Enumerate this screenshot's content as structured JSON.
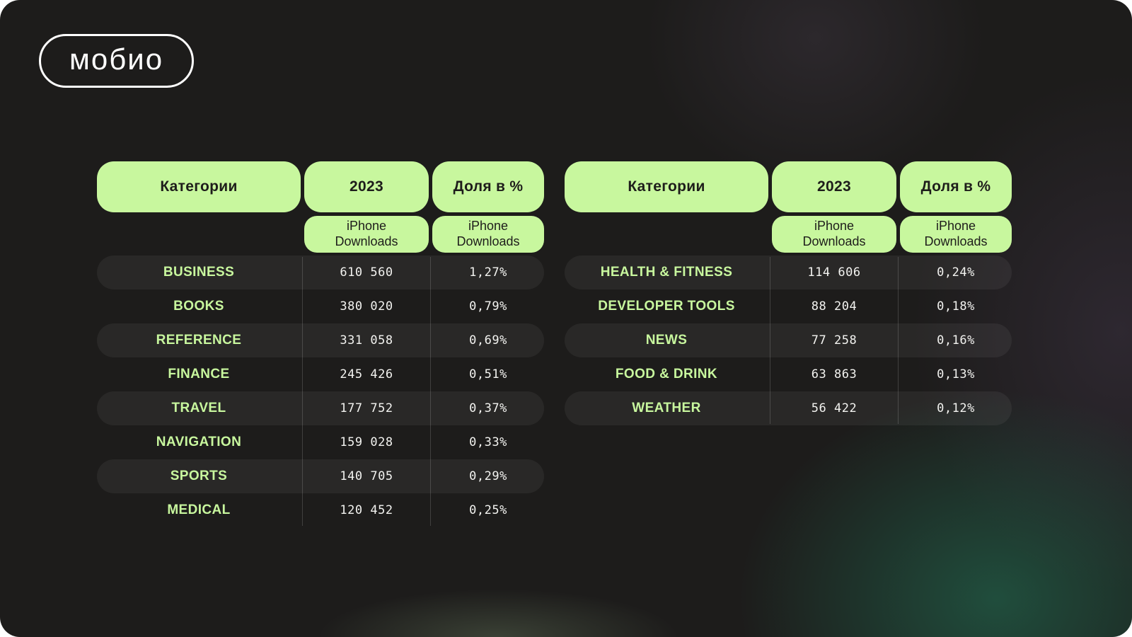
{
  "logo": {
    "text": "мобио"
  },
  "colors": {
    "accent": "#c8f79e",
    "background": "#1d1c1b",
    "row_highlight": "rgba(255,255,255,0.055)"
  },
  "tables": [
    {
      "headers": {
        "category": "Категории",
        "year": "2023",
        "share": "Доля в %"
      },
      "subheaders": {
        "downloads": "iPhone Downloads",
        "share": "iPhone Downloads"
      },
      "rows": [
        {
          "category": "BUSINESS",
          "downloads": "610 560",
          "share": "1,27%"
        },
        {
          "category": "BOOKS",
          "downloads": "380 020",
          "share": "0,79%"
        },
        {
          "category": "REFERENCE",
          "downloads": "331 058",
          "share": "0,69%"
        },
        {
          "category": "FINANCE",
          "downloads": "245 426",
          "share": "0,51%"
        },
        {
          "category": "TRAVEL",
          "downloads": "177 752",
          "share": "0,37%"
        },
        {
          "category": "NAVIGATION",
          "downloads": "159 028",
          "share": "0,33%"
        },
        {
          "category": "SPORTS",
          "downloads": "140 705",
          "share": "0,29%"
        },
        {
          "category": "MEDICAL",
          "downloads": "120 452",
          "share": "0,25%"
        }
      ]
    },
    {
      "headers": {
        "category": "Категории",
        "year": "2023",
        "share": "Доля в %"
      },
      "subheaders": {
        "downloads": "iPhone Downloads",
        "share": "iPhone Downloads"
      },
      "rows": [
        {
          "category": "HEALTH & FITNESS",
          "downloads": "114 606",
          "share": "0,24%"
        },
        {
          "category": "DEVELOPER TOOLS",
          "downloads": "88 204",
          "share": "0,18%"
        },
        {
          "category": "NEWS",
          "downloads": "77 258",
          "share": "0,16%"
        },
        {
          "category": "FOOD & DRINK",
          "downloads": "63 863",
          "share": "0,13%"
        },
        {
          "category": "WEATHER",
          "downloads": "56 422",
          "share": "0,12%"
        }
      ]
    }
  ],
  "chart_data": [
    {
      "type": "table",
      "title": "Категории — 2023 iPhone Downloads — Доля в %",
      "columns": [
        "Категории",
        "2023 iPhone Downloads",
        "Доля в % iPhone Downloads"
      ],
      "rows": [
        [
          "BUSINESS",
          "610 560",
          "1,27%"
        ],
        [
          "BOOKS",
          "380 020",
          "0,79%"
        ],
        [
          "REFERENCE",
          "331 058",
          "0,69%"
        ],
        [
          "FINANCE",
          "245 426",
          "0,51%"
        ],
        [
          "TRAVEL",
          "177 752",
          "0,37%"
        ],
        [
          "NAVIGATION",
          "159 028",
          "0,33%"
        ],
        [
          "SPORTS",
          "140 705",
          "0,29%"
        ],
        [
          "MEDICAL",
          "120 452",
          "0,25%"
        ]
      ]
    },
    {
      "type": "table",
      "title": "Категории — 2023 iPhone Downloads — Доля в %",
      "columns": [
        "Категории",
        "2023 iPhone Downloads",
        "Доля в % iPhone Downloads"
      ],
      "rows": [
        [
          "HEALTH & FITNESS",
          "114 606",
          "0,24%"
        ],
        [
          "DEVELOPER TOOLS",
          "88 204",
          "0,18%"
        ],
        [
          "NEWS",
          "77 258",
          "0,16%"
        ],
        [
          "FOOD & DRINK",
          "63 863",
          "0,13%"
        ],
        [
          "WEATHER",
          "56 422",
          "0,12%"
        ]
      ]
    }
  ]
}
